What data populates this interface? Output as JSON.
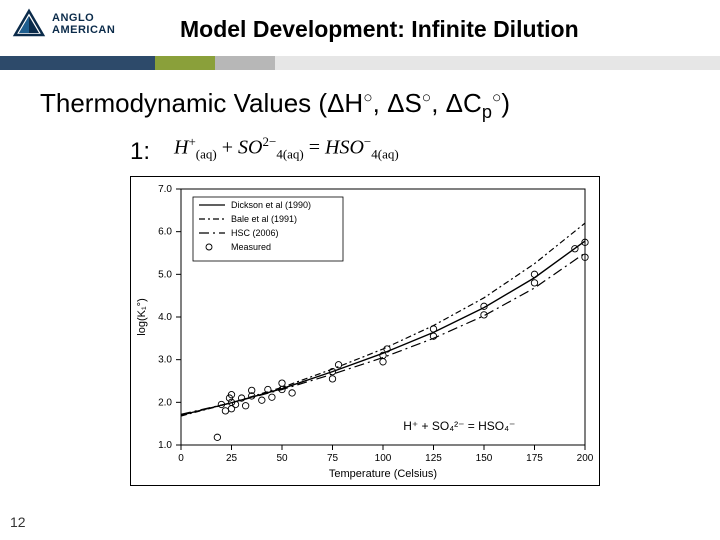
{
  "header": {
    "brand_line1": "ANGLO",
    "brand_line2": "AMERICAN",
    "logo_colors": {
      "stroke": "#0b2b4a",
      "fill": "#0b2b4a"
    },
    "title": "Model Development: Infinite Dilution"
  },
  "stripe_colors": [
    "#2d4a6a",
    "#8aa03a",
    "#b7b7b7",
    "#e6e6e6"
  ],
  "subtitle": "Thermodynamic Values (ΔH°, ΔS°, ΔCₚ°)",
  "reaction": {
    "label": "1:",
    "lhs_species1": "H",
    "lhs_charge1": "+",
    "lhs_phase1": "(aq)",
    "plus": "+",
    "lhs_species2": "SO",
    "lhs_sub2": "4",
    "lhs_charge2": "2−",
    "lhs_phase2": "(aq)",
    "eq": "=",
    "rhs_species": "HSO",
    "rhs_sub": "4",
    "rhs_charge": "−",
    "rhs_phase": "(aq)"
  },
  "chart": {
    "type": "line+scatter",
    "xlabel": "Temperature (Celsius)",
    "ylabel": "log(K₁°)",
    "xlim": [
      0,
      200
    ],
    "xtick_step": 25,
    "ylim": [
      1.0,
      7.0
    ],
    "ytick_step": 1.0,
    "axis_color": "#000000",
    "tick_fontsize": 10,
    "label_fontsize": 11,
    "annotation": "H⁺ + SO₄²⁻ = HSO₄⁻",
    "annotation_pos_xy": [
      110,
      1.35
    ],
    "legend": {
      "box_stroke": "#000",
      "fontsize": 9,
      "items": [
        {
          "label": "Dickson et al (1990)",
          "style": "solid"
        },
        {
          "label": "Bale et al (1991)",
          "style": "dashdot"
        },
        {
          "label": "HSC (2006)",
          "style": "longdashdot"
        },
        {
          "label": "Measured",
          "style": "marker"
        }
      ]
    },
    "series": [
      {
        "name": "Dickson",
        "style": "solid",
        "color": "#000",
        "width": 1.4,
        "x": [
          0,
          25,
          50,
          75,
          100,
          125,
          150,
          175,
          200
        ],
        "y": [
          1.7,
          1.99,
          2.32,
          2.72,
          3.15,
          3.64,
          4.22,
          4.92,
          5.78
        ]
      },
      {
        "name": "Bale",
        "style": "dashdot",
        "color": "#000",
        "width": 1.2,
        "x": [
          0,
          25,
          50,
          75,
          100,
          125,
          150,
          175,
          200
        ],
        "y": [
          1.68,
          1.99,
          2.35,
          2.78,
          3.25,
          3.8,
          4.45,
          5.25,
          6.2
        ]
      },
      {
        "name": "HSC",
        "style": "longdashdot",
        "color": "#000",
        "width": 1.2,
        "x": [
          0,
          25,
          50,
          75,
          100,
          125,
          150,
          175,
          200
        ],
        "y": [
          1.72,
          1.99,
          2.3,
          2.66,
          3.05,
          3.5,
          4.03,
          4.68,
          5.5
        ]
      }
    ],
    "measured": {
      "marker": "circle",
      "size": 3.2,
      "stroke": "#000",
      "fill": "none",
      "points": [
        [
          18,
          1.18
        ],
        [
          20,
          1.95
        ],
        [
          22,
          1.8
        ],
        [
          24,
          2.1
        ],
        [
          25,
          2.0
        ],
        [
          25,
          1.85
        ],
        [
          25,
          2.18
        ],
        [
          27,
          1.95
        ],
        [
          30,
          2.1
        ],
        [
          32,
          1.92
        ],
        [
          35,
          2.15
        ],
        [
          35,
          2.28
        ],
        [
          40,
          2.05
        ],
        [
          43,
          2.3
        ],
        [
          45,
          2.12
        ],
        [
          50,
          2.3
        ],
        [
          50,
          2.45
        ],
        [
          55,
          2.22
        ],
        [
          75,
          2.55
        ],
        [
          75,
          2.72
        ],
        [
          78,
          2.88
        ],
        [
          100,
          2.95
        ],
        [
          100,
          3.1
        ],
        [
          102,
          3.25
        ],
        [
          125,
          3.55
        ],
        [
          125,
          3.72
        ],
        [
          150,
          4.05
        ],
        [
          150,
          4.25
        ],
        [
          175,
          4.8
        ],
        [
          175,
          5.0
        ],
        [
          195,
          5.6
        ],
        [
          200,
          5.75
        ],
        [
          200,
          5.4
        ]
      ]
    }
  },
  "page_number": "12"
}
